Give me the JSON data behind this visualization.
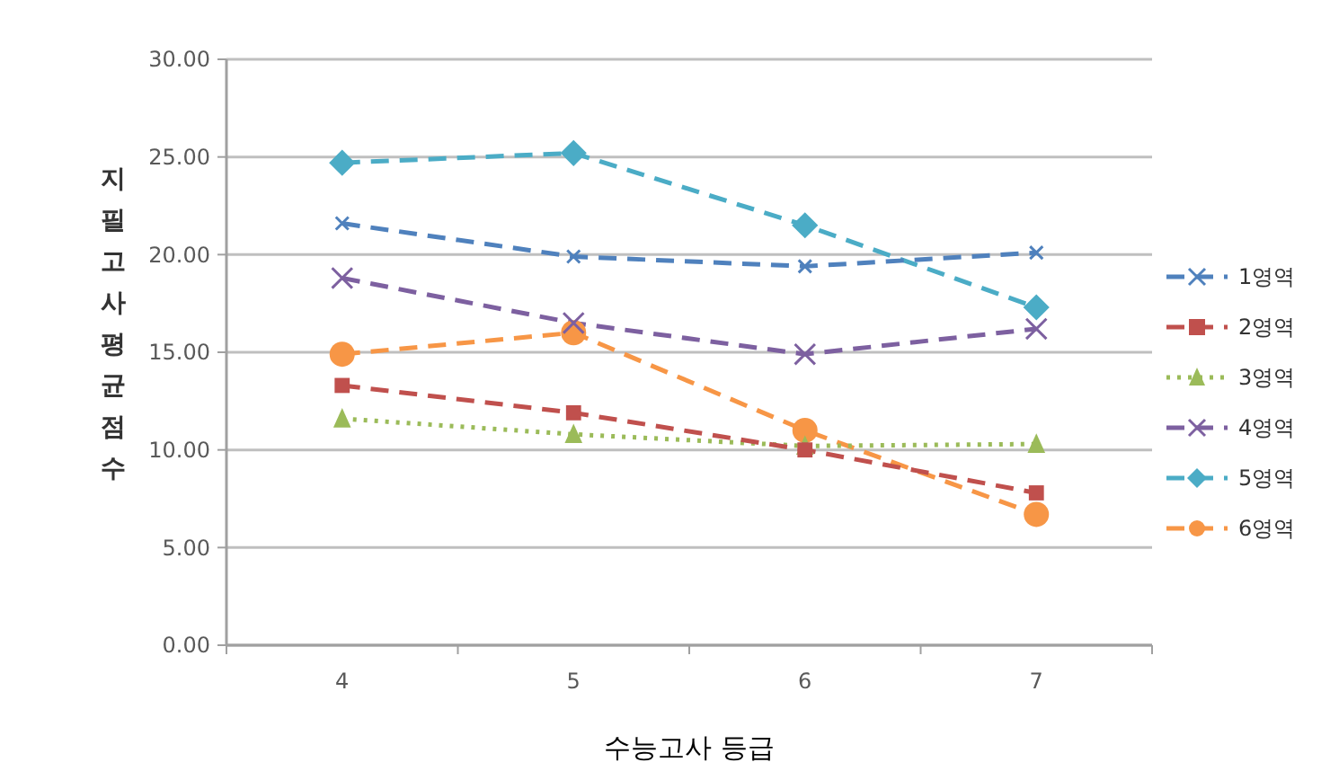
{
  "chart_data": {
    "type": "line",
    "xlabel": "수능고사 등급",
    "ylabel": "지필고사평균점수",
    "categories": [
      "4",
      "5",
      "6",
      "7"
    ],
    "ylim": [
      0,
      30
    ],
    "yticks": [
      {
        "value": 0,
        "label": "0.00"
      },
      {
        "value": 5,
        "label": "5.00"
      },
      {
        "value": 10,
        "label": "10.00"
      },
      {
        "value": 15,
        "label": "15.00"
      },
      {
        "value": 20,
        "label": "20.00"
      },
      {
        "value": 25,
        "label": "25.00"
      },
      {
        "value": 30,
        "label": "30.00"
      }
    ],
    "grid": "y",
    "legend": "right",
    "series": [
      {
        "name": "1영역",
        "color": "#4f81bd",
        "values": [
          21.6,
          19.9,
          19.4,
          20.1
        ],
        "marker": "cross",
        "line_style": "dashed"
      },
      {
        "name": "2영역",
        "color": "#c0504d",
        "values": [
          13.3,
          11.9,
          10.0,
          7.8
        ],
        "marker": "square",
        "line_style": "dashed"
      },
      {
        "name": "3영역",
        "color": "#9bbb59",
        "values": [
          11.6,
          10.8,
          10.2,
          10.3
        ],
        "marker": "triangle",
        "line_style": "dotted"
      },
      {
        "name": "4영역",
        "color": "#7d60a0",
        "values": [
          18.8,
          16.5,
          14.9,
          16.2
        ],
        "marker": "cross",
        "line_style": "dashed"
      },
      {
        "name": "5영역",
        "color": "#4bacc6",
        "values": [
          24.7,
          25.2,
          21.5,
          17.3
        ],
        "marker": "diamond",
        "line_style": "dashed"
      },
      {
        "name": "6영역",
        "color": "#f79646",
        "values": [
          14.9,
          16.0,
          11.0,
          6.7
        ],
        "marker": "circle",
        "line_style": "dashed"
      }
    ]
  }
}
